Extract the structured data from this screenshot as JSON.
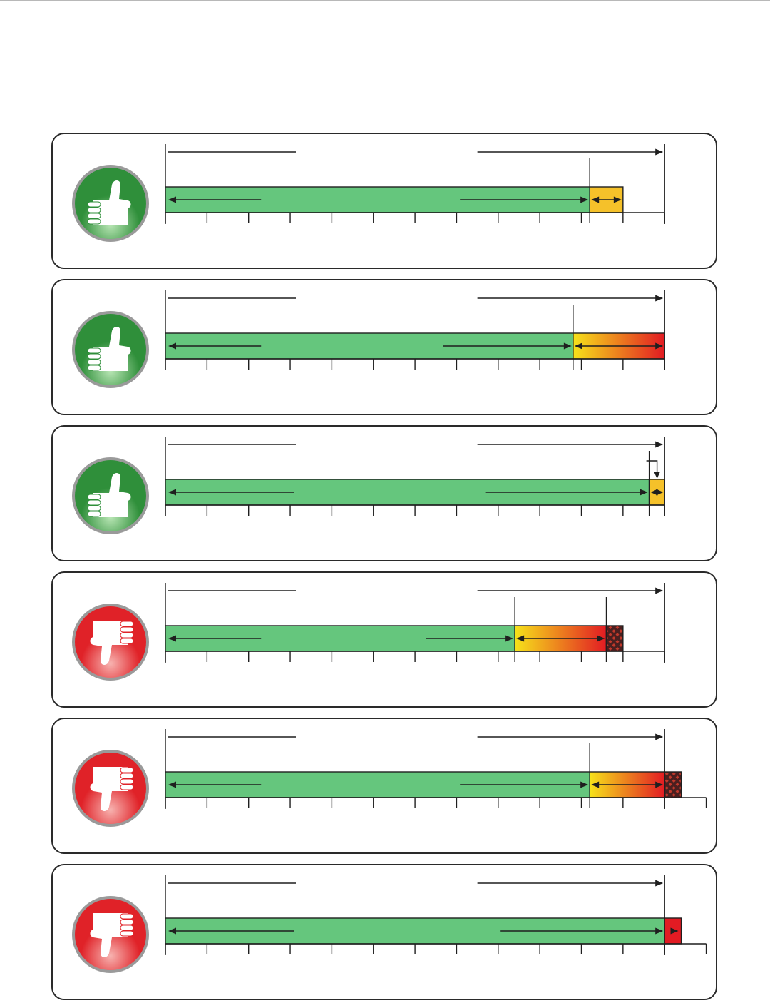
{
  "title": "",
  "colors": {
    "good_bar": "#65c67d",
    "amber": "#f5c12a",
    "gradient_start": "#f6e21a",
    "gradient_end": "#e21b23",
    "overrun": "#e21b23",
    "hatch": "#4a1f1f",
    "good_icon": "#2f8f3a",
    "bad_icon": "#e02228",
    "line": "#1f1f1f"
  },
  "ticks_total": 13,
  "panels": [
    {
      "status": "good",
      "icon": "thumbs-up-icon",
      "green_end": 10.2,
      "zone_end": 11.0,
      "zone_fill": "amber",
      "zone_arrow": "double",
      "marker_at": 10.2,
      "hatch_end": null,
      "axis_end": 12,
      "label_arrow_text": "",
      "inner_arrow_text": ""
    },
    {
      "status": "good",
      "icon": "thumbs-up-icon",
      "green_end": 9.8,
      "zone_end": 12.0,
      "zone_fill": "gradient",
      "zone_arrow": "double",
      "marker_at": 9.8,
      "hatch_end": null,
      "axis_end": 12,
      "label_arrow_text": "",
      "inner_arrow_text": ""
    },
    {
      "status": "good",
      "icon": "thumbs-up-icon",
      "green_end": 11.63,
      "zone_end": 12.0,
      "zone_fill": "amber",
      "zone_arrow": "double",
      "marker_at": 11.63,
      "hatch_end": null,
      "axis_end": 12,
      "label_arrow_text": "",
      "inner_arrow_text": "",
      "pointer": true
    },
    {
      "status": "bad",
      "icon": "thumbs-down-icon",
      "green_end": 8.4,
      "zone_end": 10.6,
      "zone_fill": "gradient",
      "zone_arrow": "double",
      "marker_at": 8.4,
      "marker2_at": 10.6,
      "hatch_end": 11.0,
      "axis_end": 12,
      "label_arrow_text": "",
      "inner_arrow_text": ""
    },
    {
      "status": "bad",
      "icon": "thumbs-down-icon",
      "green_end": 10.2,
      "zone_end": 12.0,
      "zone_fill": "gradient",
      "zone_arrow": "double",
      "marker_at": 10.2,
      "hatch_end": 12.4,
      "axis_end": 13,
      "label_arrow_text": "",
      "inner_arrow_text": ""
    },
    {
      "status": "bad",
      "icon": "thumbs-down-icon",
      "green_end": 12.0,
      "zone_end": 12.4,
      "zone_fill": "overrun",
      "zone_arrow": "right",
      "marker_at": null,
      "hatch_end": null,
      "axis_end": 13,
      "label_arrow_text": "",
      "inner_arrow_text": ""
    }
  ]
}
